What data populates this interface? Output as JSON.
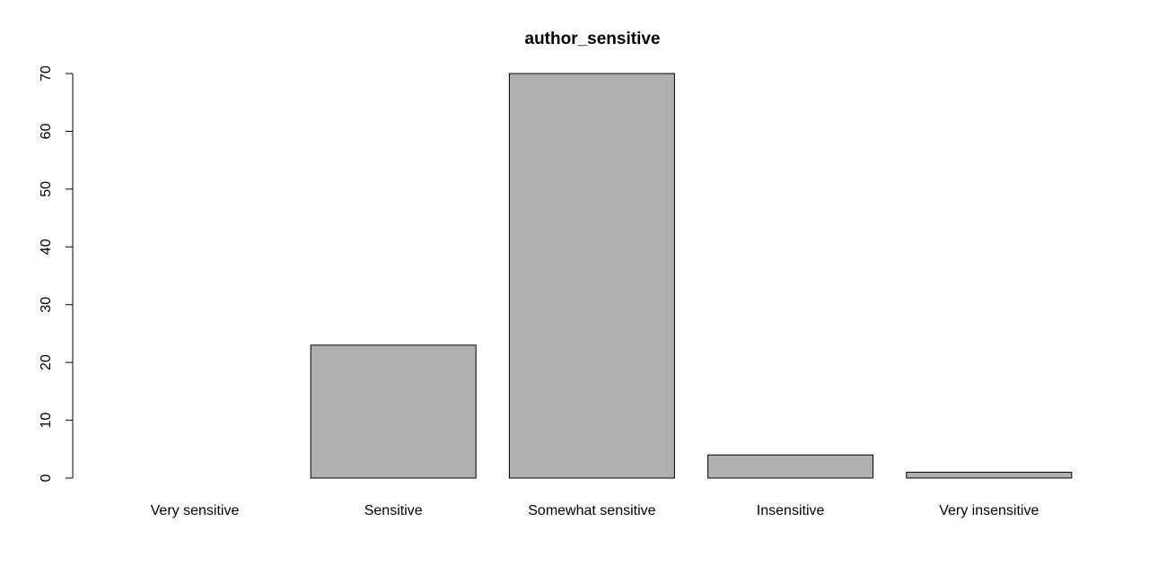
{
  "chart_data": {
    "type": "bar",
    "title": "author_sensitive",
    "xlabel": "",
    "ylabel": "",
    "categories": [
      "Very sensitive",
      "Sensitive",
      "Somewhat sensitive",
      "Insensitive",
      "Very insensitive"
    ],
    "values": [
      0,
      23,
      70,
      4,
      1
    ],
    "ylim": [
      0,
      70
    ],
    "yticks": [
      0,
      10,
      20,
      30,
      40,
      50,
      60,
      70
    ],
    "grid": false,
    "legend": "none",
    "colors": {
      "bar_fill": "#b0b0b0",
      "bar_stroke": "#000000",
      "background": "#ffffff"
    }
  }
}
